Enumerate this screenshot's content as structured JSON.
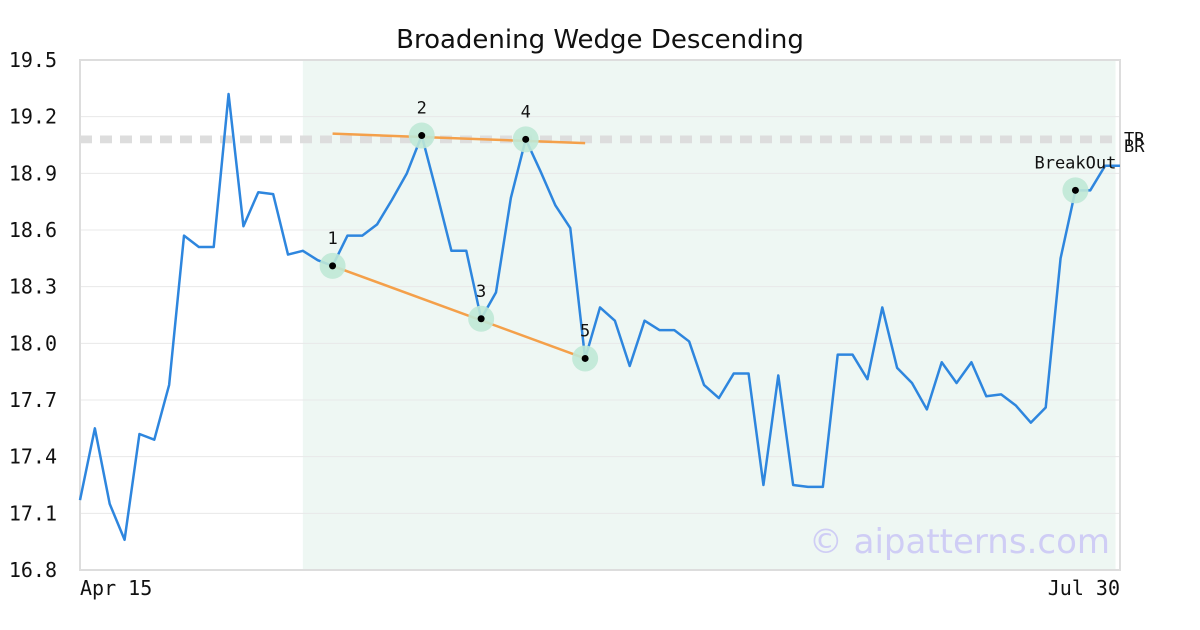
{
  "chart_data": {
    "type": "line",
    "title": "Broadening Wedge Descending",
    "xlabel": "",
    "ylabel": "",
    "x_tick_labels": [
      "Apr 15",
      "Jul 30"
    ],
    "ylim": [
      16.8,
      19.5
    ],
    "yticks": [
      16.8,
      17.1,
      17.4,
      17.7,
      18.0,
      18.3,
      18.6,
      18.9,
      19.2,
      19.5
    ],
    "grid": "horizontal",
    "series": [
      {
        "color": "#2e86de",
        "values": [
          17.17,
          17.55,
          17.15,
          16.96,
          17.52,
          17.49,
          17.78,
          18.57,
          18.51,
          18.51,
          19.32,
          18.62,
          18.8,
          18.79,
          18.47,
          18.49,
          18.44,
          18.41,
          18.57,
          18.57,
          18.63,
          18.76,
          18.9,
          19.1,
          18.8,
          18.49,
          18.49,
          18.13,
          18.27,
          18.77,
          19.08,
          18.91,
          18.73,
          18.61,
          17.92,
          18.19,
          18.12,
          17.88,
          18.12,
          18.07,
          18.07,
          18.01,
          17.78,
          17.71,
          17.84,
          17.84,
          17.25,
          17.83,
          17.25,
          17.24,
          17.24,
          17.94,
          17.94,
          17.81,
          18.19,
          17.87,
          17.79,
          17.65,
          17.9,
          17.79,
          17.9,
          17.72,
          17.73,
          17.67,
          17.58,
          17.66,
          18.45,
          18.81,
          18.81,
          18.94,
          18.94
        ]
      }
    ],
    "shaded_region": {
      "color": "#eef7f3",
      "x_range": [
        15,
        69.7
      ]
    },
    "pattern_points": [
      {
        "label": "1",
        "x": 17,
        "y": 18.41
      },
      {
        "label": "2",
        "x": 23,
        "y": 19.1
      },
      {
        "label": "3",
        "x": 27,
        "y": 18.13
      },
      {
        "label": "4",
        "x": 30,
        "y": 19.08
      },
      {
        "label": "5",
        "x": 34,
        "y": 17.92
      },
      {
        "label": "BreakOut",
        "x": 67,
        "y": 18.81
      }
    ],
    "trendlines": [
      {
        "color": "#f4a04a",
        "from": {
          "x": 17,
          "y": 19.11
        },
        "to": {
          "x": 34,
          "y": 19.06
        }
      },
      {
        "color": "#f4a04a",
        "from": {
          "x": 17,
          "y": 18.41
        },
        "to": {
          "x": 34,
          "y": 17.92
        }
      }
    ],
    "reference_lines": [
      {
        "label": "TR",
        "y": 19.09,
        "color": "#dddddd"
      },
      {
        "label": "BR",
        "y": 19.07,
        "color": "#dddddd"
      }
    ],
    "marker_halo_color": "#bfe8d6",
    "watermark": "© aipatterns.com"
  }
}
